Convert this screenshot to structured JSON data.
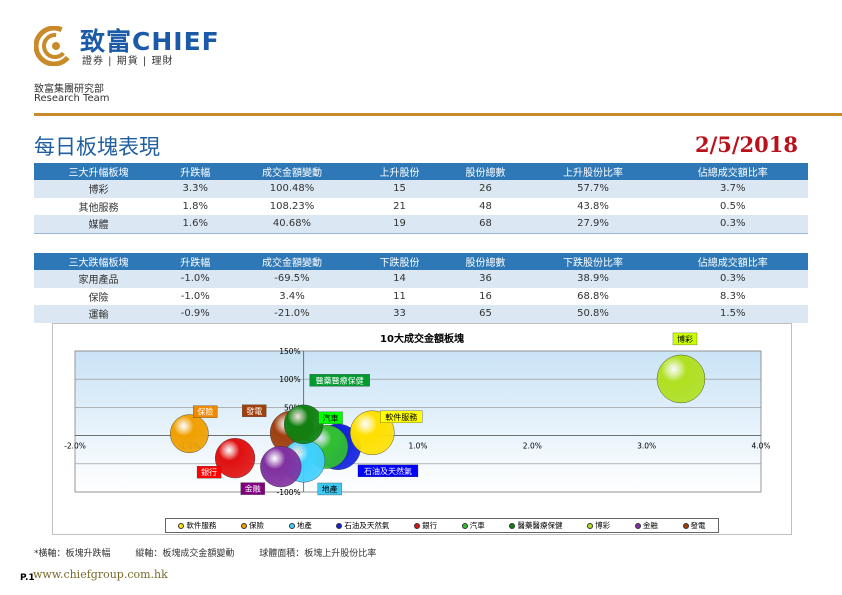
{
  "header": {
    "brand_cn": "致富CHIEF",
    "tagline": "證券 | 期貨 | 理財",
    "dept_cn": "致富集團研究部",
    "dept_en": "Research Team",
    "title": "每日板塊表現",
    "date": "2/5/2018"
  },
  "table_up": {
    "headers": [
      "三大升幅板塊",
      "升跌幅",
      "成交金額變動",
      "上升股份",
      "股份總數",
      "上升股份比率",
      "佔總成交額比率"
    ],
    "rows": [
      [
        "博彩",
        "3.3%",
        "100.48%",
        "15",
        "26",
        "57.7%",
        "3.7%"
      ],
      [
        "其他服務",
        "1.8%",
        "108.23%",
        "21",
        "48",
        "43.8%",
        "0.5%"
      ],
      [
        "媒體",
        "1.6%",
        "40.68%",
        "19",
        "68",
        "27.9%",
        "0.3%"
      ]
    ]
  },
  "table_down": {
    "headers": [
      "三大跌幅板塊",
      "升跌幅",
      "成交金額變動",
      "下跌股份",
      "股份總數",
      "下跌股份比率",
      "佔總成交額比率"
    ],
    "rows": [
      [
        "家用產品",
        "-1.0%",
        "-69.5%",
        "14",
        "36",
        "38.9%",
        "0.3%"
      ],
      [
        "保險",
        "-1.0%",
        "3.4%",
        "11",
        "16",
        "68.8%",
        "8.3%"
      ],
      [
        "運輸",
        "-0.9%",
        "-21.0%",
        "33",
        "65",
        "50.8%",
        "1.5%"
      ]
    ]
  },
  "chart_data": {
    "type": "scatter",
    "title": "10大成交金額板塊",
    "xlim": [
      -2.0,
      4.0
    ],
    "ylim": [
      -100,
      150
    ],
    "x_ticks": [
      "-2.0%",
      "-1.0%",
      "0.0%",
      "1.0%",
      "2.0%",
      "3.0%",
      "4.0%"
    ],
    "x_tick_values": [
      -2,
      -1,
      0,
      1,
      2,
      3,
      4
    ],
    "y_ticks": [
      "-100%",
      "-50%",
      "0%",
      "50%",
      "100%",
      "150%"
    ],
    "y_tick_values": [
      -100,
      -50,
      0,
      50,
      100,
      150
    ],
    "grid": "horizontal",
    "legend_position": "bottom",
    "series": [
      {
        "name": "軟件服務",
        "x": 0.6,
        "y": 5,
        "size": 45,
        "color": "#ffe000",
        "label_bg": "#ffff00",
        "label_color": "#000000"
      },
      {
        "name": "保險",
        "x": -1.0,
        "y": 3.4,
        "size": 28,
        "color": "#f0a000",
        "label_bg": "#f08a00",
        "label_color": "#ffffff"
      },
      {
        "name": "地產",
        "x": 0.0,
        "y": -45,
        "size": 40,
        "color": "#40d0ff",
        "label_bg": "#40c8f0",
        "label_color": "#000000"
      },
      {
        "name": "石油及天然氣",
        "x": 0.3,
        "y": -20,
        "size": 50,
        "color": "#1020e0",
        "label_bg": "#0000ff",
        "label_color": "#ffffff"
      },
      {
        "name": "銀行",
        "x": -0.6,
        "y": -40,
        "size": 32,
        "color": "#e01010",
        "label_bg": "#ff0000",
        "label_color": "#ffffff"
      },
      {
        "name": "汽車",
        "x": 0.2,
        "y": -20,
        "size": 42,
        "color": "#30c030",
        "label_bg": "#00ff00",
        "label_color": "#000000"
      },
      {
        "name": "醫藥醫療保健",
        "x": 0.0,
        "y": 20,
        "size": 30,
        "color": "#108010",
        "label_bg": "#009a30",
        "label_color": "#ffffff"
      },
      {
        "name": "博彩",
        "x": 3.3,
        "y": 100.48,
        "size": 58,
        "color": "#b0e020",
        "label_bg": "#ccff00",
        "label_color": "#000000"
      },
      {
        "name": "金融",
        "x": -0.2,
        "y": -55,
        "size": 35,
        "color": "#8030a0",
        "label_bg": "#800080",
        "label_color": "#ffffff"
      },
      {
        "name": "發電",
        "x": -0.1,
        "y": 5,
        "size": 45,
        "color": "#a04010",
        "label_bg": "#a0400a",
        "label_color": "#ffffff"
      }
    ]
  },
  "footnote": {
    "x": "*橫軸：板塊升跌幅",
    "y": "縱軸：板塊成交金額變動",
    "size": "球體面積：板塊上升股份比率"
  },
  "footer": {
    "page": "P.1",
    "website": "www.chiefgroup.com.hk"
  }
}
